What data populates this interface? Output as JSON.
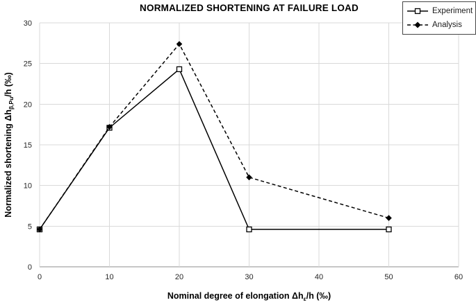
{
  "title": "NORMALIZED SHORTENING AT FAILURE LOAD",
  "axes": {
    "x_label": {
      "prefix": "Nominal degree of elongation Δh",
      "sub": "ε",
      "suffix": "/h (‰)"
    },
    "y_label": {
      "prefix": "Normalized shortening Δh",
      "sub": "β,Pu",
      "suffix": "/h (‰)"
    }
  },
  "chart_data": {
    "type": "line",
    "title": "NORMALIZED SHORTENING AT FAILURE LOAD",
    "xlabel": "Nominal degree of elongation Δhε/h (‰)",
    "ylabel": "Normalized shortening Δhβ,Pu/h (‰)",
    "xlim": [
      0,
      60
    ],
    "ylim": [
      0,
      30
    ],
    "xticks": [
      0,
      10,
      20,
      30,
      40,
      50,
      60
    ],
    "yticks": [
      0,
      5,
      10,
      15,
      20,
      25,
      30
    ],
    "grid": true,
    "legend_position": "top-right",
    "series": [
      {
        "name": "Experiment",
        "line_style": "solid",
        "marker": "open-square",
        "color": "#000000",
        "x": [
          0,
          10,
          20,
          30,
          50
        ],
        "y": [
          4.6,
          17.1,
          24.3,
          4.6,
          4.6
        ]
      },
      {
        "name": "Analysis",
        "line_style": "dashed",
        "marker": "filled-diamond",
        "color": "#000000",
        "x": [
          0,
          10,
          20,
          30,
          50
        ],
        "y": [
          4.6,
          17.2,
          27.4,
          11.0,
          6.0
        ]
      }
    ]
  },
  "colors": {
    "grid": "#d9d9d9",
    "axis": "#c6c6c6",
    "series": "#000000",
    "tick_text": "#262626"
  }
}
